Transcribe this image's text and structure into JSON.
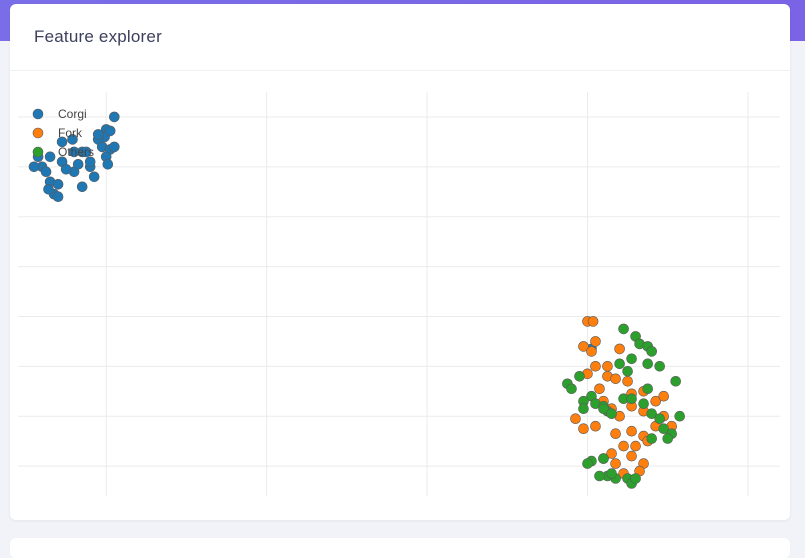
{
  "card": {
    "title": "Feature explorer"
  },
  "colors": {
    "header_band": "#7a6ee8",
    "grid": "#ebebeb",
    "marker_edge": "#5a5a5a"
  },
  "chart_data": {
    "type": "scatter",
    "title": "",
    "xlabel": "",
    "ylabel": "",
    "xlim": [
      -1.1,
      8.4
    ],
    "ylim": [
      -1.6,
      6.5
    ],
    "grid": true,
    "axis_ticks_visible": false,
    "legend_position": "top-left",
    "series": [
      {
        "name": "Corgi",
        "color": "#1f77b4",
        "points": [
          [
            0.1,
            6.0
          ],
          [
            0.0,
            5.75
          ],
          [
            -0.02,
            5.6
          ],
          [
            0.05,
            5.72
          ],
          [
            -0.1,
            5.55
          ],
          [
            -0.05,
            5.4
          ],
          [
            -0.3,
            5.3
          ],
          [
            -0.4,
            5.3
          ],
          [
            -0.55,
            5.1
          ],
          [
            -0.7,
            5.2
          ],
          [
            -0.8,
            5.0
          ],
          [
            -0.75,
            4.9
          ],
          [
            -0.9,
            5.0
          ],
          [
            -0.7,
            4.7
          ],
          [
            -0.6,
            4.65
          ],
          [
            -0.4,
            4.9
          ],
          [
            -0.35,
            5.05
          ],
          [
            -0.2,
            5.0
          ],
          [
            -0.15,
            4.8
          ],
          [
            0.05,
            5.35
          ],
          [
            0.1,
            5.4
          ],
          [
            -0.3,
            4.6
          ],
          [
            -0.65,
            4.45
          ],
          [
            -0.6,
            4.4
          ],
          [
            -0.72,
            4.55
          ],
          [
            -0.55,
            5.5
          ],
          [
            -0.42,
            5.55
          ],
          [
            -0.2,
            5.1
          ],
          [
            0.0,
            5.2
          ],
          [
            -0.1,
            5.65
          ],
          [
            -0.5,
            4.95
          ],
          [
            -0.85,
            5.2
          ],
          [
            -0.25,
            5.3
          ],
          [
            0.02,
            5.05
          ],
          [
            6.05,
            1.35
          ]
        ]
      },
      {
        "name": "Fork",
        "color": "#ff7f0e",
        "points": [
          [
            6.0,
            1.9
          ],
          [
            6.07,
            1.9
          ],
          [
            6.1,
            1.5
          ],
          [
            5.95,
            1.4
          ],
          [
            6.1,
            1.0
          ],
          [
            6.25,
            1.0
          ],
          [
            6.25,
            0.8
          ],
          [
            6.35,
            0.75
          ],
          [
            6.5,
            0.7
          ],
          [
            6.4,
            1.35
          ],
          [
            6.05,
            1.3
          ],
          [
            6.0,
            0.85
          ],
          [
            6.15,
            0.55
          ],
          [
            6.55,
            0.45
          ],
          [
            6.7,
            0.5
          ],
          [
            6.2,
            0.3
          ],
          [
            6.3,
            0.15
          ],
          [
            6.4,
            0.0
          ],
          [
            6.55,
            0.2
          ],
          [
            6.7,
            0.1
          ],
          [
            6.85,
            0.3
          ],
          [
            6.95,
            0.4
          ],
          [
            5.85,
            -0.05
          ],
          [
            5.95,
            -0.25
          ],
          [
            6.1,
            -0.2
          ],
          [
            6.35,
            -0.35
          ],
          [
            6.55,
            -0.3
          ],
          [
            6.7,
            -0.4
          ],
          [
            6.85,
            -0.2
          ],
          [
            6.75,
            -0.5
          ],
          [
            6.6,
            -0.6
          ],
          [
            6.45,
            -0.6
          ],
          [
            6.3,
            -0.75
          ],
          [
            6.2,
            -0.85
          ],
          [
            6.35,
            -0.95
          ],
          [
            6.55,
            -0.8
          ],
          [
            6.7,
            -0.95
          ],
          [
            6.65,
            -1.1
          ],
          [
            6.45,
            -1.15
          ],
          [
            6.95,
            0.0
          ],
          [
            7.05,
            -0.2
          ]
        ]
      },
      {
        "name": "Others",
        "color": "#2ca02c",
        "points": [
          [
            6.45,
            1.75
          ],
          [
            6.6,
            1.6
          ],
          [
            6.65,
            1.45
          ],
          [
            6.75,
            1.4
          ],
          [
            6.8,
            1.3
          ],
          [
            6.55,
            1.15
          ],
          [
            6.4,
            1.05
          ],
          [
            6.75,
            1.05
          ],
          [
            6.9,
            1.0
          ],
          [
            6.5,
            0.9
          ],
          [
            5.9,
            0.8
          ],
          [
            5.75,
            0.65
          ],
          [
            5.8,
            0.55
          ],
          [
            6.05,
            0.4
          ],
          [
            5.95,
            0.3
          ],
          [
            6.1,
            0.25
          ],
          [
            6.2,
            0.2
          ],
          [
            6.25,
            0.1
          ],
          [
            6.45,
            0.35
          ],
          [
            6.55,
            0.35
          ],
          [
            6.7,
            0.25
          ],
          [
            6.8,
            0.05
          ],
          [
            6.9,
            -0.05
          ],
          [
            5.95,
            0.15
          ],
          [
            6.2,
            0.15
          ],
          [
            6.3,
            0.05
          ],
          [
            6.75,
            0.55
          ],
          [
            6.95,
            -0.25
          ],
          [
            7.05,
            -0.35
          ],
          [
            7.0,
            -0.45
          ],
          [
            7.15,
            0.0
          ],
          [
            7.1,
            0.7
          ],
          [
            6.05,
            -0.9
          ],
          [
            6.0,
            -0.95
          ],
          [
            6.25,
            -1.2
          ],
          [
            6.35,
            -1.25
          ],
          [
            6.3,
            -1.15
          ],
          [
            6.5,
            -1.25
          ],
          [
            6.55,
            -1.35
          ],
          [
            6.6,
            -1.25
          ],
          [
            6.8,
            -0.45
          ],
          [
            6.2,
            -0.85
          ],
          [
            6.15,
            -1.2
          ]
        ]
      }
    ]
  }
}
